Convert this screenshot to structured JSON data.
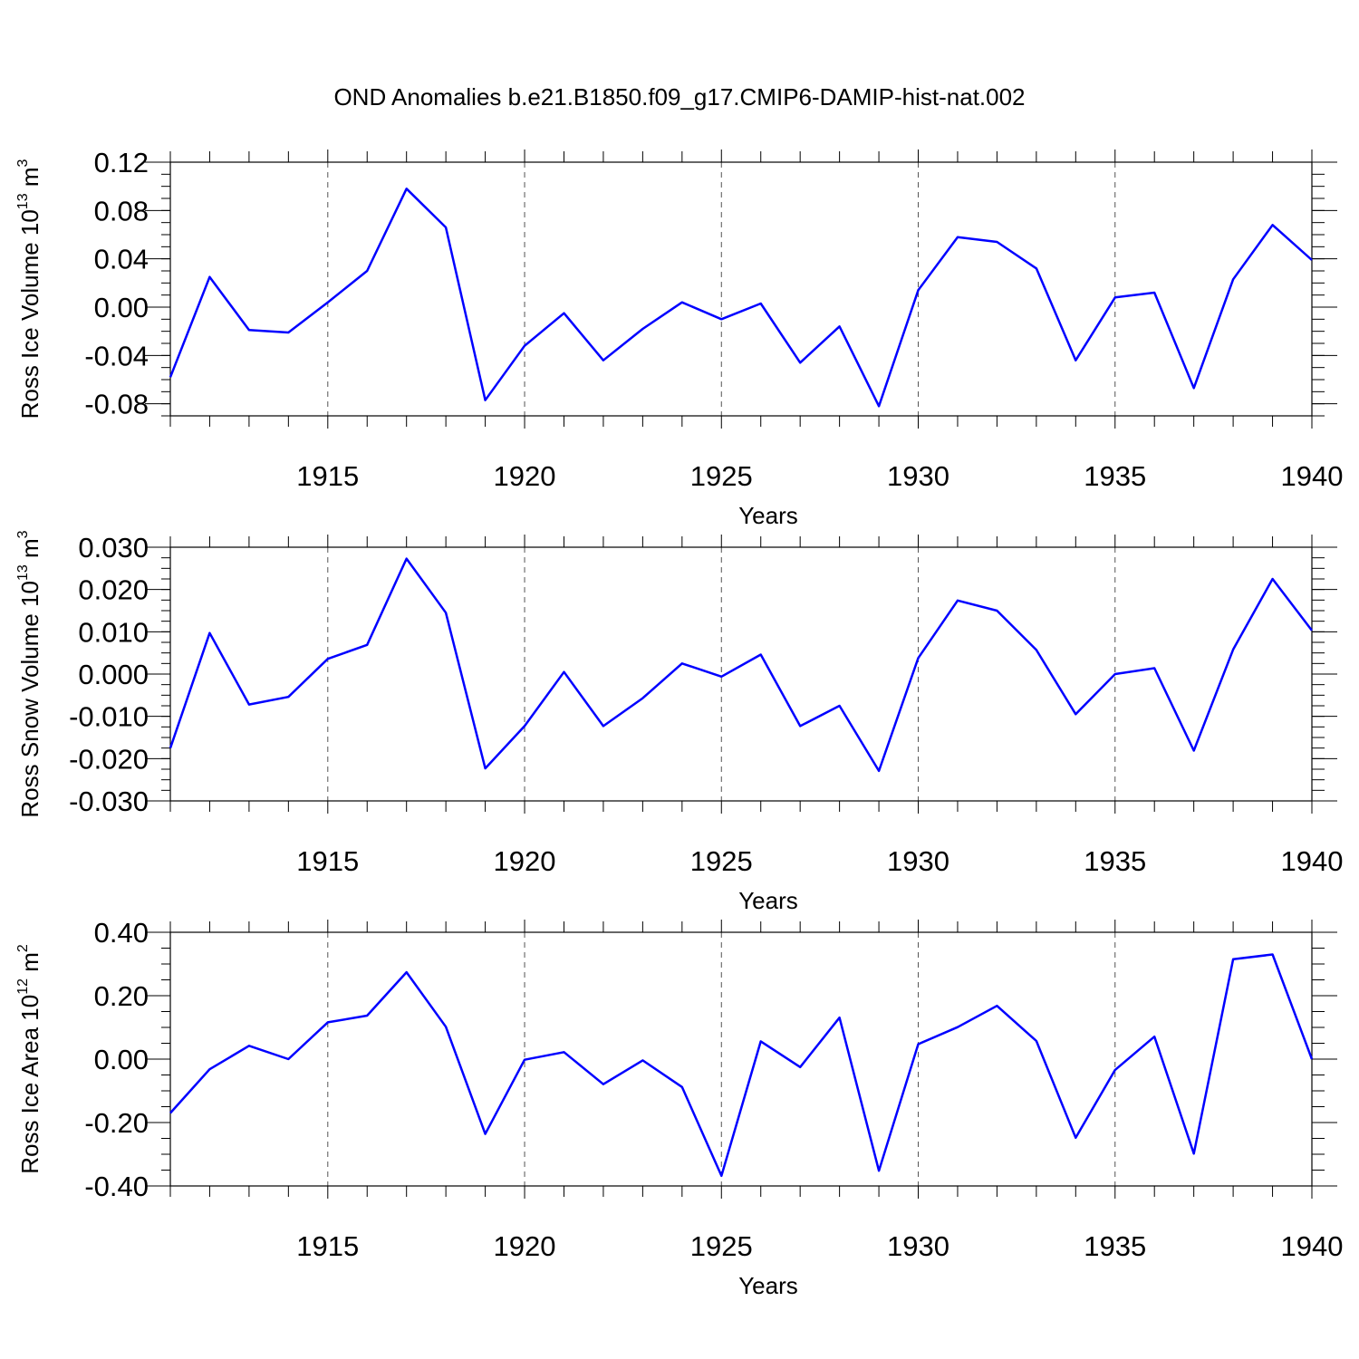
{
  "title": "OND Anomalies b.e21.B1850.f09_g17.CMIP6-DAMIP-hist-nat.002",
  "chart_data": [
    {
      "type": "line",
      "name": "ice-volume",
      "ylabel": "Ross Ice Volume 10",
      "ylabel_exp": "13",
      "ylabel_unit": " m",
      "ylabel_unit_exp": "3",
      "xlabel": "Years",
      "xlim": [
        1911,
        1940
      ],
      "ylim": [
        -0.09,
        0.12
      ],
      "yticks": [
        -0.08,
        -0.04,
        0.0,
        0.04,
        0.08,
        0.12
      ],
      "ytick_labels": [
        "-0.08",
        "-0.04",
        "0.00",
        "0.04",
        "0.08",
        "0.12"
      ],
      "yminor": 0.01,
      "xticks": [
        1915,
        1920,
        1925,
        1930,
        1935,
        1940
      ],
      "xtick_labels": [
        "1915",
        "1920",
        "1925",
        "1930",
        "1935",
        "1940"
      ],
      "grid_x": [
        1915,
        1920,
        1925,
        1930,
        1935
      ],
      "series_color": "#0000ff",
      "x": [
        1911,
        1912,
        1913,
        1914,
        1915,
        1916,
        1917,
        1918,
        1919,
        1920,
        1921,
        1922,
        1923,
        1924,
        1925,
        1926,
        1927,
        1928,
        1929,
        1930,
        1931,
        1932,
        1933,
        1934,
        1935,
        1936,
        1937,
        1938,
        1939,
        1940
      ],
      "values": [
        -0.058,
        0.025,
        -0.019,
        -0.021,
        0.004,
        0.03,
        0.098,
        0.066,
        -0.077,
        -0.032,
        -0.005,
        -0.044,
        -0.018,
        0.004,
        -0.01,
        0.003,
        -0.046,
        -0.016,
        -0.082,
        0.014,
        0.058,
        0.054,
        0.032,
        -0.044,
        0.008,
        0.012,
        -0.067,
        0.023,
        0.068,
        0.039
      ]
    },
    {
      "type": "line",
      "name": "snow-volume",
      "ylabel": "Ross Snow Volume 10",
      "ylabel_exp": "13",
      "ylabel_unit": " m",
      "ylabel_unit_exp": "3",
      "xlabel": "Years",
      "xlim": [
        1911,
        1940
      ],
      "ylim": [
        -0.03,
        0.03
      ],
      "yticks": [
        -0.03,
        -0.02,
        -0.01,
        0.0,
        0.01,
        0.02,
        0.03
      ],
      "ytick_labels": [
        "-0.030",
        "-0.020",
        "-0.010",
        "0.000",
        "0.010",
        "0.020",
        "0.030"
      ],
      "yminor": 0.0025,
      "xticks": [
        1915,
        1920,
        1925,
        1930,
        1935,
        1940
      ],
      "xtick_labels": [
        "1915",
        "1920",
        "1925",
        "1930",
        "1935",
        "1940"
      ],
      "grid_x": [
        1915,
        1920,
        1925,
        1930,
        1935
      ],
      "series_color": "#0000ff",
      "x": [
        1911,
        1912,
        1913,
        1914,
        1915,
        1916,
        1917,
        1918,
        1919,
        1920,
        1921,
        1922,
        1923,
        1924,
        1925,
        1926,
        1927,
        1928,
        1929,
        1930,
        1931,
        1932,
        1933,
        1934,
        1935,
        1936,
        1937,
        1938,
        1939,
        1940
      ],
      "values": [
        -0.0175,
        0.0097,
        -0.0072,
        -0.0054,
        0.0036,
        0.0069,
        0.0273,
        0.0145,
        -0.0223,
        -0.0123,
        0.0005,
        -0.0123,
        -0.0057,
        0.0025,
        -0.0006,
        0.0046,
        -0.0123,
        -0.0075,
        -0.0229,
        0.0038,
        0.0174,
        0.015,
        0.0057,
        -0.0095,
        0.0,
        0.0014,
        -0.0181,
        0.0058,
        0.0225,
        0.0103
      ]
    },
    {
      "type": "line",
      "name": "ice-area",
      "ylabel": "Ross Ice Area 10",
      "ylabel_exp": "12",
      "ylabel_unit": " m",
      "ylabel_unit_exp": "2",
      "xlabel": "Years",
      "xlim": [
        1911,
        1940
      ],
      "ylim": [
        -0.4,
        0.4
      ],
      "yticks": [
        -0.4,
        -0.2,
        0.0,
        0.2,
        0.4
      ],
      "ytick_labels": [
        "-0.40",
        "-0.20",
        "0.00",
        "0.20",
        "0.40"
      ],
      "yminor": 0.05,
      "xticks": [
        1915,
        1920,
        1925,
        1930,
        1935,
        1940
      ],
      "xtick_labels": [
        "1915",
        "1920",
        "1925",
        "1930",
        "1935",
        "1940"
      ],
      "grid_x": [
        1915,
        1920,
        1925,
        1930,
        1935
      ],
      "series_color": "#0000ff",
      "x": [
        1911,
        1912,
        1913,
        1914,
        1915,
        1916,
        1917,
        1918,
        1919,
        1920,
        1921,
        1922,
        1923,
        1924,
        1925,
        1926,
        1927,
        1928,
        1929,
        1930,
        1931,
        1932,
        1933,
        1934,
        1935,
        1936,
        1937,
        1938,
        1939,
        1940
      ],
      "values": [
        -0.17,
        -0.032,
        0.042,
        0.0,
        0.116,
        0.137,
        0.274,
        0.102,
        -0.236,
        -0.002,
        0.022,
        -0.079,
        -0.004,
        -0.088,
        -0.368,
        0.056,
        -0.025,
        0.131,
        -0.352,
        0.047,
        0.101,
        0.168,
        0.057,
        -0.248,
        -0.034,
        0.071,
        -0.298,
        0.315,
        0.33,
        0.0
      ]
    }
  ]
}
